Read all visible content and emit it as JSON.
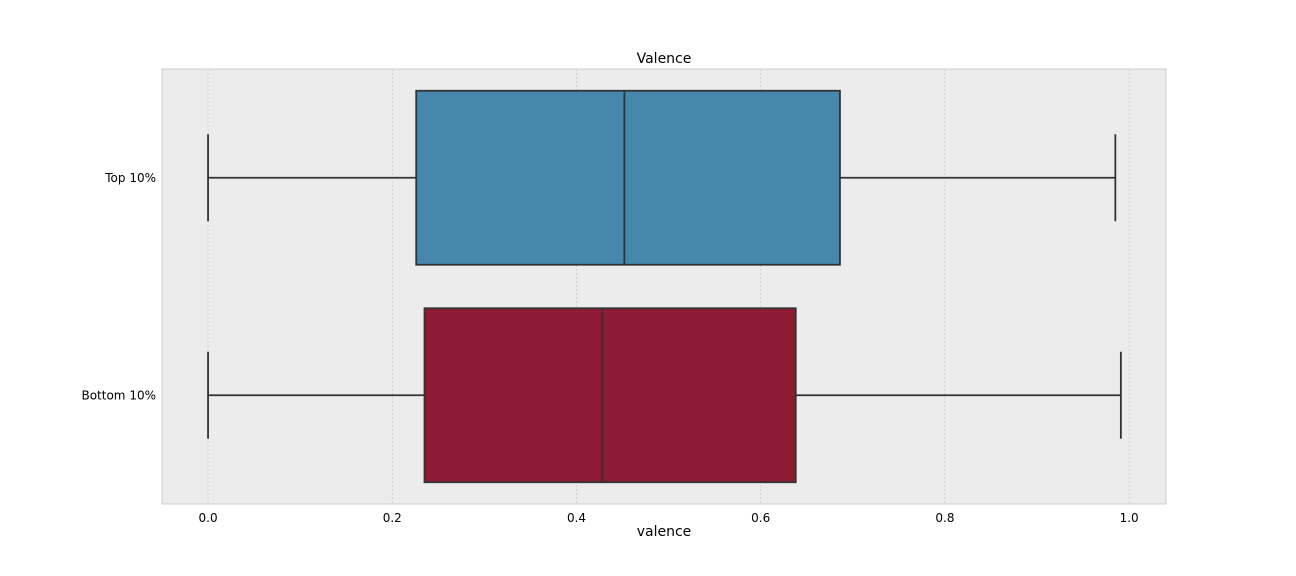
{
  "chart_data": {
    "type": "boxplot",
    "orientation": "horizontal",
    "title": "Valence",
    "xlabel": "valence",
    "ylabel": "",
    "xlim": [
      -0.05,
      1.04
    ],
    "xticks": [
      0.0,
      0.2,
      0.4,
      0.6,
      0.8,
      1.0
    ],
    "xtick_labels": [
      "0.0",
      "0.2",
      "0.4",
      "0.6",
      "0.8",
      "1.0"
    ],
    "grid": true,
    "categories": [
      "Top 10%",
      "Bottom 10%"
    ],
    "series": [
      {
        "name": "Top 10%",
        "color": "#4587ad",
        "whisker_low": 0.0,
        "q1": 0.226,
        "median": 0.452,
        "q3": 0.686,
        "whisker_high": 0.985
      },
      {
        "name": "Bottom 10%",
        "color": "#8f1a33",
        "whisker_low": 0.0,
        "q1": 0.235,
        "median": 0.428,
        "q3": 0.638,
        "whisker_high": 0.991
      }
    ],
    "colors": {
      "plot_background": "#ececec",
      "grid": "#c8c8c8",
      "box_edge": "#333333",
      "frame": "#cccccc"
    }
  }
}
